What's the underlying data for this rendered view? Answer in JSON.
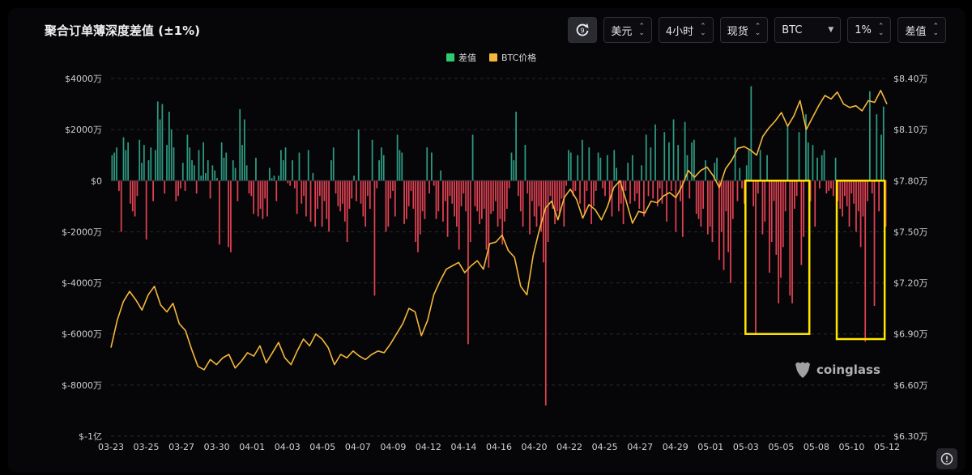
{
  "title": "聚合订单薄深度差值 (±1%)",
  "toolbar": {
    "currency": "美元",
    "interval": "4小时",
    "market": "现货",
    "symbol": "BTC",
    "range": "1%",
    "mode": "差值"
  },
  "watermark": "coinglass",
  "colors": {
    "positive": "#2d9b83",
    "negative": "#e04152",
    "price": "#f5b73b",
    "highlight": "#ffe600"
  },
  "chart_data": {
    "type": "bar",
    "title": "聚合订单薄深度差值 (±1%)",
    "legend": [
      "差值",
      "BTC价格"
    ],
    "legend_position": "top-center",
    "grid": true,
    "x_ticks": [
      "03-23",
      "03-25",
      "03-27",
      "03-30",
      "04-01",
      "04-03",
      "04-05",
      "04-07",
      "04-09",
      "04-12",
      "04-14",
      "04-16",
      "04-20",
      "04-22",
      "04-25",
      "04-27",
      "04-29",
      "05-01",
      "05-03",
      "05-05",
      "05-08",
      "05-10",
      "05-12"
    ],
    "y_left_ticks": [
      "$-1亿",
      "$-8000万",
      "$-6000万",
      "$-4000万",
      "$-2000万",
      "$0",
      "$2000万",
      "$4000万"
    ],
    "y_right_ticks": [
      "$6.30万",
      "$6.60万",
      "$6.90万",
      "$7.20万",
      "$7.50万",
      "$7.80万",
      "$8.10万",
      "$8.40万"
    ],
    "y_left_range": [
      -100000000,
      40000000
    ],
    "y_right_range": [
      63000,
      84000
    ],
    "series": [
      {
        "name": "差值",
        "type": "bar",
        "values": [
          10,
          11,
          13,
          -4,
          -20,
          17,
          12,
          15,
          -9,
          -12,
          -14,
          -6,
          16,
          7,
          14,
          -23,
          8,
          13,
          -8,
          12,
          31,
          24,
          30,
          -5,
          14,
          27,
          20,
          13,
          -8,
          -6,
          -3,
          7,
          -4,
          18,
          13,
          8,
          6,
          -5,
          12,
          2,
          15,
          3,
          8,
          -7,
          6,
          4,
          1,
          -25,
          15,
          9,
          11,
          -26,
          -28,
          8,
          5,
          -8,
          28,
          14,
          24,
          6,
          -5,
          -6,
          -13,
          9,
          -14,
          -11,
          -15,
          -7,
          -14,
          5,
          1,
          2,
          -8,
          2,
          12,
          8,
          13,
          -1,
          -2,
          8,
          -3,
          -13,
          11,
          -9,
          -6,
          -14,
          12,
          -16,
          3,
          -18,
          -11,
          -6,
          -18,
          -8,
          -15,
          -20,
          8,
          13,
          -5,
          -10,
          -12,
          -9,
          -16,
          -24,
          -11,
          -7,
          2,
          -8,
          20,
          -9,
          -14,
          -18,
          -6,
          -11,
          16,
          -45,
          -3,
          8,
          13,
          10,
          -20,
          -18,
          -7,
          -4,
          -14,
          18,
          12,
          11,
          -17,
          -15,
          -10,
          -4,
          -11,
          -24,
          -28,
          -21,
          -12,
          -15,
          13,
          -5,
          11,
          -2,
          -15,
          -12,
          4,
          -16,
          -8,
          -22,
          -6,
          -9,
          -14,
          -18,
          -27,
          -10,
          -5,
          -12,
          -64,
          -24,
          18,
          -10,
          -12,
          -17,
          -15,
          -11,
          -27,
          -34,
          -13,
          -12,
          -8,
          -18,
          -15,
          -25,
          -16,
          -11,
          -3,
          11,
          8,
          27,
          -6,
          -12,
          -18,
          14,
          -5,
          -21,
          -8,
          -14,
          -18,
          -10,
          -20,
          -32,
          -88,
          -24,
          -6,
          -11,
          -17,
          -12,
          -14,
          -7,
          -18,
          -2,
          12,
          11,
          -6,
          -4,
          10,
          -9,
          16,
          -13,
          -4,
          13,
          -17,
          -10,
          -4,
          11,
          9,
          -3,
          -6,
          10,
          -8,
          -14,
          12,
          5,
          -12,
          -9,
          -17,
          -4,
          7,
          -9,
          10,
          -8,
          -5,
          -11,
          6,
          -14,
          18,
          -6,
          13,
          -7,
          22,
          -10,
          -3,
          -9,
          19,
          -16,
          15,
          -4,
          24,
          -20,
          14,
          -8,
          -22,
          23,
          10,
          -7,
          15,
          16,
          -13,
          -15,
          -18,
          -11,
          8,
          -21,
          -18,
          -24,
          7,
          9,
          -31,
          -20,
          -35,
          -12,
          -28,
          -40,
          -15,
          17,
          -8,
          5,
          -3,
          -9,
          6,
          12,
          37,
          -10,
          -60,
          -5,
          12,
          -21,
          -16,
          10,
          -36,
          -24,
          -8,
          -29,
          -48,
          -38,
          -26,
          -12,
          22,
          -45,
          -48,
          -11,
          -6,
          19,
          -33,
          -22,
          26,
          15,
          -8,
          14,
          -18,
          9,
          -3,
          10,
          12,
          -5,
          -4,
          -3,
          -6,
          9,
          -8,
          -11,
          -14,
          -6,
          -10,
          -18,
          -5,
          -9,
          -20,
          -12,
          -26,
          -14,
          -63,
          -8,
          35,
          -5,
          -49,
          26,
          -12,
          18,
          29,
          -18
        ],
        "unit": "万美元"
      },
      {
        "name": "BTC价格",
        "type": "line",
        "values": [
          68200,
          69800,
          70900,
          71500,
          71000,
          70400,
          71300,
          71800,
          70700,
          70300,
          70800,
          69600,
          69200,
          68100,
          67100,
          66900,
          67500,
          67200,
          67600,
          67800,
          67000,
          67400,
          67900,
          67700,
          68300,
          67300,
          67900,
          68500,
          67600,
          67200,
          68000,
          68700,
          68300,
          69000,
          68700,
          68200,
          67200,
          67800,
          67600,
          68000,
          67700,
          67500,
          67800,
          68000,
          67900,
          68400,
          69000,
          69600,
          70500,
          70300,
          68900,
          69800,
          71300,
          72100,
          72800,
          73000,
          73200,
          72600,
          73000,
          73300,
          72800,
          74300,
          74400,
          74800,
          73900,
          73500,
          71800,
          71300,
          73600,
          75100,
          76400,
          76800,
          75700,
          77000,
          77500,
          76900,
          75800,
          76600,
          76300,
          75700,
          76500,
          77600,
          78000,
          76800,
          75500,
          76200,
          76100,
          76800,
          76700,
          77100,
          77300,
          77000,
          77700,
          78600,
          78200,
          78600,
          78800,
          78300,
          77600,
          78700,
          79200,
          79900,
          80000,
          79800,
          79500,
          80600,
          81100,
          81500,
          82000,
          81200,
          81800,
          82700,
          81000,
          81700,
          82400,
          83000,
          82800,
          83200,
          82500,
          82300,
          82400,
          82100,
          82700,
          82600,
          83300,
          82500
        ],
        "unit": "美元"
      }
    ],
    "annotations": [
      "highlight box 05-03 to 05-06",
      "highlight box 05-09 to 05-12"
    ]
  }
}
